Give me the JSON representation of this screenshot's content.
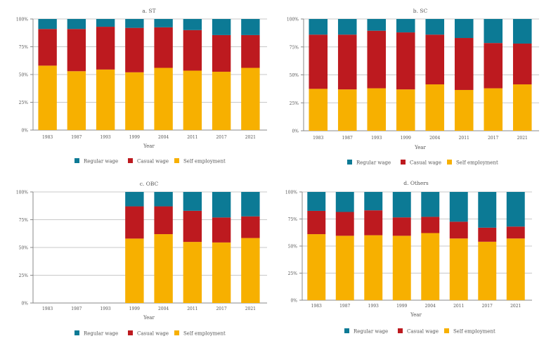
{
  "chart_data": [
    {
      "type": "bar",
      "stacked": true,
      "title": "a. ST",
      "xlabel": "Year",
      "ylabel": "",
      "ylim": [
        0,
        100
      ],
      "yticks": [
        "0%",
        "25%",
        "50%",
        "75%",
        "100%"
      ],
      "grid": true,
      "legend": "bottom",
      "categories": [
        "1983",
        "1987",
        "1993",
        "1999",
        "2004",
        "2011",
        "2017",
        "2021"
      ],
      "series": [
        {
          "name": "Self employment",
          "color": "#f7b000",
          "values": [
            58,
            53,
            54.5,
            52,
            56,
            53.5,
            52.5,
            56
          ]
        },
        {
          "name": "Casual wage",
          "color": "#bd1a1f",
          "values": [
            33,
            38,
            38.5,
            40,
            36.5,
            36.5,
            33,
            29.5
          ]
        },
        {
          "name": "Regular wage",
          "color": "#0c7a95",
          "values": [
            9,
            9,
            7,
            8,
            7.5,
            10,
            14.5,
            14.5
          ]
        }
      ]
    },
    {
      "type": "bar",
      "stacked": true,
      "title": "b. SC",
      "xlabel": "Year",
      "ylabel": "",
      "ylim": [
        0,
        100
      ],
      "yticks": [
        "0%",
        "25%",
        "50%",
        "75%",
        "100%"
      ],
      "grid": true,
      "legend": "bottom",
      "categories": [
        "1983",
        "1987",
        "1993",
        "1999",
        "2004",
        "2011",
        "2017",
        "2021"
      ],
      "series": [
        {
          "name": "Self employment",
          "color": "#f7b000",
          "values": [
            37.5,
            37,
            38,
            37,
            41.5,
            36.5,
            38,
            41.5
          ]
        },
        {
          "name": "Casual wage",
          "color": "#bd1a1f",
          "values": [
            48.5,
            49,
            51.5,
            51,
            44.5,
            46.5,
            40.5,
            36.5
          ]
        },
        {
          "name": "Regular wage",
          "color": "#0c7a95",
          "values": [
            14,
            14,
            10.5,
            12,
            14,
            17,
            21.5,
            22
          ]
        }
      ]
    },
    {
      "type": "bar",
      "stacked": true,
      "title": "c. OBC",
      "xlabel": "Year",
      "ylabel": "",
      "ylim": [
        0,
        100
      ],
      "yticks": [
        "0%",
        "25%",
        "50%",
        "75%",
        "100%"
      ],
      "grid": true,
      "legend": "bottom",
      "categories": [
        "1983",
        "1987",
        "1993",
        "1999",
        "2004",
        "2011",
        "2017",
        "2021"
      ],
      "series": [
        {
          "name": "Self employment",
          "color": "#f7b000",
          "values": [
            null,
            null,
            null,
            58,
            62,
            55,
            54.5,
            58.5
          ]
        },
        {
          "name": "Casual wage",
          "color": "#bd1a1f",
          "values": [
            null,
            null,
            null,
            29,
            25,
            28,
            22.5,
            19.5
          ]
        },
        {
          "name": "Regular wage",
          "color": "#0c7a95",
          "values": [
            null,
            null,
            null,
            13,
            13,
            17,
            23,
            22
          ]
        }
      ]
    },
    {
      "type": "bar",
      "stacked": true,
      "title": "d. Others",
      "xlabel": "Year",
      "ylabel": "",
      "ylim": [
        0,
        100
      ],
      "yticks": [
        "0%",
        "25%",
        "50%",
        "75%",
        "100%"
      ],
      "grid": true,
      "legend": "bottom",
      "categories": [
        "1983",
        "1987",
        "1993",
        "1999",
        "2004",
        "2011",
        "2017",
        "2021"
      ],
      "series": [
        {
          "name": "Self employment",
          "color": "#f7b000",
          "values": [
            61,
            59.5,
            60,
            59.5,
            62,
            57,
            54,
            57
          ]
        },
        {
          "name": "Casual wage",
          "color": "#bd1a1f",
          "values": [
            21.5,
            22,
            23,
            17,
            15,
            15.5,
            13,
            11
          ]
        },
        {
          "name": "Regular wage",
          "color": "#0c7a95",
          "values": [
            17.5,
            18.5,
            17,
            23.5,
            23,
            27.5,
            33,
            32
          ]
        }
      ]
    }
  ],
  "legend_order": [
    "Regular wage",
    "Casual wage",
    "Self employment"
  ]
}
